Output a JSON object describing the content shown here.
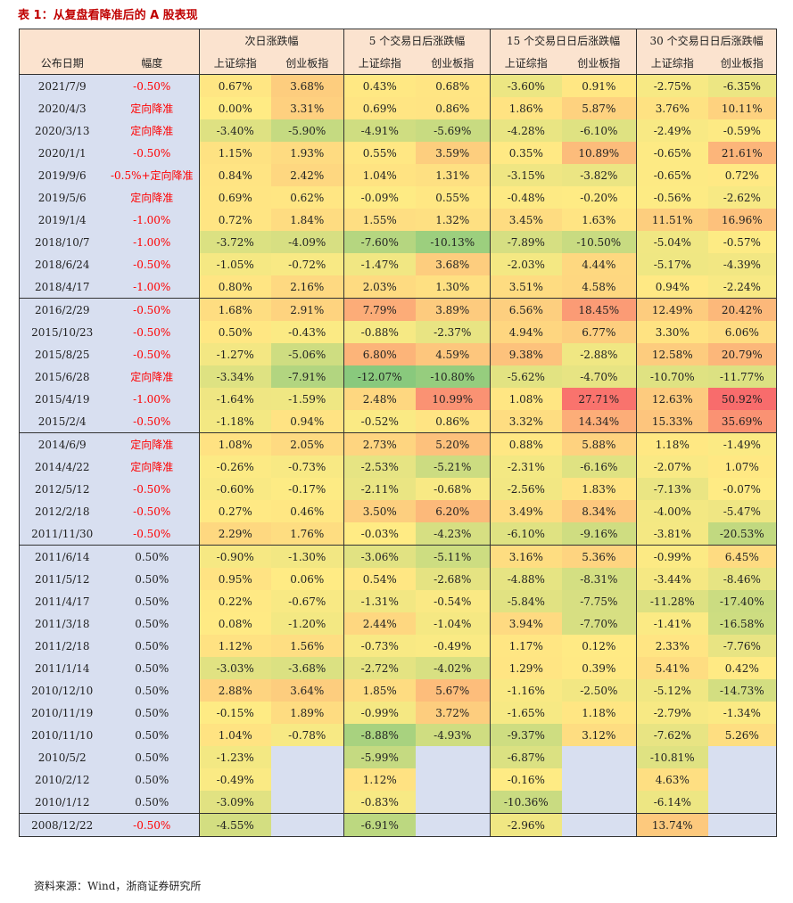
{
  "title": "表 1：从复盘看降准后的 A 股表现",
  "source": "资料来源：Wind，浙商证券研究所",
  "groups": [
    "次日涨跌幅",
    "5 个交易日后涨跌幅",
    "15 个交易日日后涨跌幅",
    "30 个交易日日后涨跌幅"
  ],
  "columns": [
    "公布日期",
    "幅度",
    "上证综指",
    "创业板指",
    "上证综指",
    "创业板指",
    "上证综指",
    "创业板指",
    "上证综指",
    "创业板指"
  ],
  "blocks": [
    [
      [
        "2021/7/9",
        "-0.50%",
        "0.67%",
        "3.68%",
        "0.43%",
        "0.68%",
        "-3.60%",
        "0.91%",
        "-2.75%",
        "-6.35%"
      ],
      [
        "2020/4/3",
        "定向降准",
        "0.00%",
        "3.31%",
        "0.69%",
        "0.86%",
        "1.86%",
        "5.87%",
        "3.76%",
        "10.11%"
      ],
      [
        "2020/3/13",
        "定向降准",
        "-3.40%",
        "-5.90%",
        "-4.91%",
        "-5.69%",
        "-4.28%",
        "-6.10%",
        "-2.49%",
        "-0.59%"
      ],
      [
        "2020/1/1",
        "-0.50%",
        "1.15%",
        "1.93%",
        "0.55%",
        "3.59%",
        "0.35%",
        "10.89%",
        "-0.65%",
        "21.61%"
      ],
      [
        "2019/9/6",
        "-0.5%+定向降准",
        "0.84%",
        "2.42%",
        "1.04%",
        "1.31%",
        "-3.15%",
        "-3.82%",
        "-0.65%",
        "0.72%"
      ],
      [
        "2019/5/6",
        "定向降准",
        "0.69%",
        "0.62%",
        "-0.09%",
        "0.55%",
        "-0.48%",
        "-0.20%",
        "-0.56%",
        "-2.62%"
      ],
      [
        "2019/1/4",
        "-1.00%",
        "0.72%",
        "1.84%",
        "1.55%",
        "1.32%",
        "3.45%",
        "1.63%",
        "11.51%",
        "16.96%"
      ],
      [
        "2018/10/7",
        "-1.00%",
        "-3.72%",
        "-4.09%",
        "-7.60%",
        "-10.13%",
        "-7.89%",
        "-10.50%",
        "-5.04%",
        "-0.57%"
      ],
      [
        "2018/6/24",
        "-0.50%",
        "-1.05%",
        "-0.72%",
        "-1.47%",
        "3.68%",
        "-2.03%",
        "4.44%",
        "-5.17%",
        "-4.39%"
      ],
      [
        "2018/4/17",
        "-1.00%",
        "0.80%",
        "2.16%",
        "2.03%",
        "1.30%",
        "3.51%",
        "4.58%",
        "0.94%",
        "-2.24%"
      ]
    ],
    [
      [
        "2016/2/29",
        "-0.50%",
        "1.68%",
        "2.91%",
        "7.79%",
        "3.89%",
        "6.56%",
        "18.45%",
        "12.49%",
        "20.42%"
      ],
      [
        "2015/10/23",
        "-0.50%",
        "0.50%",
        "-0.43%",
        "-0.88%",
        "-2.37%",
        "4.94%",
        "6.77%",
        "3.30%",
        "6.06%"
      ],
      [
        "2015/8/25",
        "-0.50%",
        "-1.27%",
        "-5.06%",
        "6.80%",
        "4.59%",
        "9.38%",
        "-2.88%",
        "12.58%",
        "20.79%"
      ],
      [
        "2015/6/28",
        "定向降准",
        "-3.34%",
        "-7.91%",
        "-12.07%",
        "-10.80%",
        "-5.62%",
        "-4.70%",
        "-10.70%",
        "-11.77%"
      ],
      [
        "2015/4/19",
        "-1.00%",
        "-1.64%",
        "-1.59%",
        "2.48%",
        "10.99%",
        "1.08%",
        "27.71%",
        "12.63%",
        "50.92%"
      ],
      [
        "2015/2/4",
        "-0.50%",
        "-1.18%",
        "0.94%",
        "-0.52%",
        "0.86%",
        "3.32%",
        "14.34%",
        "15.33%",
        "35.69%"
      ]
    ],
    [
      [
        "2014/6/9",
        "定向降准",
        "1.08%",
        "2.05%",
        "2.73%",
        "5.20%",
        "0.88%",
        "5.88%",
        "1.18%",
        "-1.49%"
      ],
      [
        "2014/4/22",
        "定向降准",
        "-0.26%",
        "-0.73%",
        "-2.53%",
        "-5.21%",
        "-2.31%",
        "-6.16%",
        "-2.07%",
        "1.07%"
      ],
      [
        "2012/5/12",
        "-0.50%",
        "-0.60%",
        "-0.17%",
        "-2.11%",
        "-0.68%",
        "-2.56%",
        "1.83%",
        "-7.13%",
        "-0.07%"
      ],
      [
        "2012/2/18",
        "-0.50%",
        "0.27%",
        "0.46%",
        "3.50%",
        "6.20%",
        "3.49%",
        "8.34%",
        "-4.00%",
        "-5.47%"
      ],
      [
        "2011/11/30",
        "-0.50%",
        "2.29%",
        "1.76%",
        "-0.03%",
        "-4.23%",
        "-6.10%",
        "-9.16%",
        "-3.81%",
        "-20.53%"
      ]
    ],
    [
      [
        "2011/6/14",
        "0.50%",
        "-0.90%",
        "-1.30%",
        "-3.06%",
        "-5.11%",
        "3.16%",
        "5.36%",
        "-0.99%",
        "6.45%"
      ],
      [
        "2011/5/12",
        "0.50%",
        "0.95%",
        "0.06%",
        "0.54%",
        "-2.68%",
        "-4.88%",
        "-8.31%",
        "-3.44%",
        "-8.46%"
      ],
      [
        "2011/4/17",
        "0.50%",
        "0.22%",
        "-0.67%",
        "-1.31%",
        "-0.54%",
        "-5.84%",
        "-7.75%",
        "-11.28%",
        "-17.40%"
      ],
      [
        "2011/3/18",
        "0.50%",
        "0.08%",
        "-1.20%",
        "2.44%",
        "-1.04%",
        "3.94%",
        "-7.70%",
        "-1.41%",
        "-16.58%"
      ],
      [
        "2011/2/18",
        "0.50%",
        "1.12%",
        "1.56%",
        "-0.73%",
        "-0.49%",
        "1.17%",
        "0.12%",
        "2.33%",
        "-7.76%"
      ],
      [
        "2011/1/14",
        "0.50%",
        "-3.03%",
        "-3.68%",
        "-2.72%",
        "-4.02%",
        "1.29%",
        "0.39%",
        "5.41%",
        "0.42%"
      ],
      [
        "2010/12/10",
        "0.50%",
        "2.88%",
        "3.64%",
        "1.85%",
        "5.67%",
        "-1.16%",
        "-2.50%",
        "-5.12%",
        "-14.73%"
      ],
      [
        "2010/11/19",
        "0.50%",
        "-0.15%",
        "1.89%",
        "-0.99%",
        "3.72%",
        "-1.65%",
        "1.18%",
        "-2.79%",
        "-1.34%"
      ],
      [
        "2010/11/10",
        "0.50%",
        "1.04%",
        "-0.78%",
        "-8.88%",
        "-4.93%",
        "-9.37%",
        "3.12%",
        "-7.62%",
        "5.26%"
      ],
      [
        "2010/5/2",
        "0.50%",
        "-1.23%",
        "",
        "-5.99%",
        "",
        "-6.87%",
        "",
        "-10.81%",
        ""
      ],
      [
        "2010/2/12",
        "0.50%",
        "-0.49%",
        "",
        "1.12%",
        "",
        "-0.16%",
        "",
        "4.63%",
        ""
      ],
      [
        "2010/1/12",
        "0.50%",
        "-3.09%",
        "",
        "-0.83%",
        "",
        "-10.36%",
        "",
        "-6.14%",
        ""
      ]
    ],
    [
      [
        "2008/12/22",
        "-0.50%",
        "-4.55%",
        "",
        "-6.91%",
        "",
        "-2.96%",
        "",
        "13.74%",
        ""
      ]
    ]
  ],
  "colors": {
    "header_bg": "#fbe3cf",
    "date_bg": "#d8dff0",
    "blank_bg": "#d8dff0",
    "cut_bg": "#ff0000",
    "scale_low": "#63be7b",
    "scale_mid": "#ffeb84",
    "scale_high": "#f8696b"
  }
}
